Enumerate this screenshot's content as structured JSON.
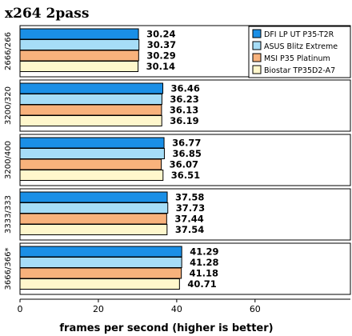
{
  "chart_data": {
    "type": "bar",
    "orientation": "horizontal",
    "title": "x264 2pass",
    "xlabel": "frames per second (higher is better)",
    "ylabel": "",
    "xlim": [
      0,
      70
    ],
    "xticks": [
      0,
      20,
      40,
      60
    ],
    "grid": false,
    "legend_position": "top-right",
    "categories": [
      "2666/266",
      "3200/320",
      "3200/400",
      "3333/333",
      "3666/366*"
    ],
    "series": [
      {
        "name": "DFI LP UT P35-T2R",
        "color": "#1a8fe6",
        "values": [
          30.24,
          36.46,
          36.77,
          37.58,
          41.29
        ]
      },
      {
        "name": "ASUS Blitz Extreme",
        "color": "#a6ddf7",
        "values": [
          30.37,
          36.23,
          36.85,
          37.73,
          41.28
        ]
      },
      {
        "name": "MSI P35 Platinum",
        "color": "#f8b27c",
        "values": [
          30.29,
          36.13,
          36.07,
          37.44,
          41.18
        ]
      },
      {
        "name": "Biostar TP35D2-A7",
        "color": "#fff7cc",
        "values": [
          30.14,
          36.19,
          36.51,
          37.54,
          40.71
        ]
      }
    ]
  }
}
